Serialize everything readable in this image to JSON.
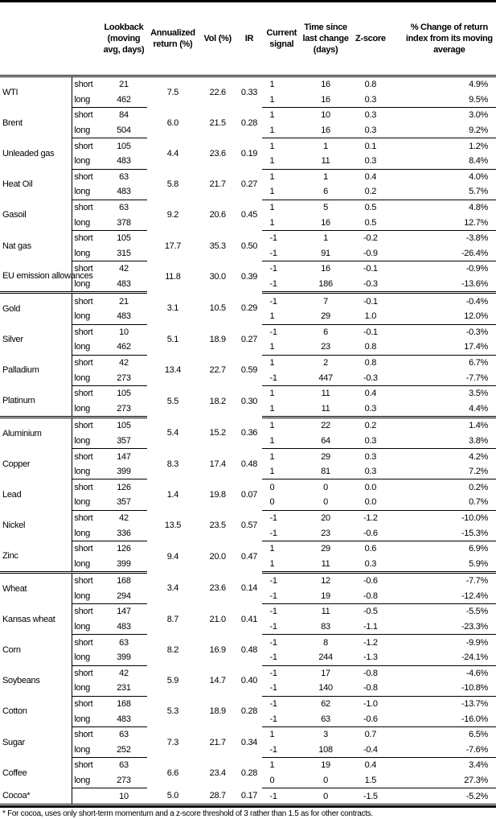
{
  "headers": [
    "",
    "",
    "Lookback (moving avg, days)",
    "Annualized return (%)",
    "Vol (%)",
    "IR",
    "Current signal",
    "Time since last change (days)",
    "Z-score",
    "% Change of return index from its moving average"
  ],
  "sections": [
    [
      {
        "name": "WTI",
        "ret": "7.5",
        "vol": "22.6",
        "ir": "0.33",
        "rows": [
          [
            "short",
            "21",
            "1",
            "16",
            "0.8",
            "4.9%"
          ],
          [
            "long",
            "462",
            "1",
            "16",
            "0.3",
            "9.5%"
          ]
        ]
      },
      {
        "name": "Brent",
        "ret": "6.0",
        "vol": "21.5",
        "ir": "0.28",
        "rows": [
          [
            "short",
            "84",
            "1",
            "10",
            "0.3",
            "3.0%"
          ],
          [
            "long",
            "504",
            "1",
            "16",
            "0.3",
            "9.2%"
          ]
        ]
      },
      {
        "name": "Unleaded gas",
        "ret": "4.4",
        "vol": "23.6",
        "ir": "0.19",
        "rows": [
          [
            "short",
            "105",
            "1",
            "1",
            "0.1",
            "1.2%"
          ],
          [
            "long",
            "483",
            "1",
            "11",
            "0.3",
            "8.4%"
          ]
        ]
      },
      {
        "name": "Heat Oil",
        "ret": "5.8",
        "vol": "21.7",
        "ir": "0.27",
        "rows": [
          [
            "short",
            "63",
            "1",
            "1",
            "0.4",
            "4.0%"
          ],
          [
            "long",
            "483",
            "1",
            "6",
            "0.2",
            "5.7%"
          ]
        ]
      },
      {
        "name": "Gasoil",
        "ret": "9.2",
        "vol": "20.6",
        "ir": "0.45",
        "rows": [
          [
            "short",
            "63",
            "1",
            "5",
            "0.5",
            "4.8%"
          ],
          [
            "long",
            "378",
            "1",
            "16",
            "0.5",
            "12.7%"
          ]
        ]
      },
      {
        "name": "Nat gas",
        "ret": "17.7",
        "vol": "35.3",
        "ir": "0.50",
        "rows": [
          [
            "short",
            "105",
            "-1",
            "1",
            "-0.2",
            "-3.8%"
          ],
          [
            "long",
            "315",
            "-1",
            "91",
            "-0.9",
            "-26.4%"
          ]
        ]
      },
      {
        "name": "EU emission allowances",
        "ret": "11.8",
        "vol": "30.0",
        "ir": "0.39",
        "rows": [
          [
            "short",
            "42",
            "-1",
            "16",
            "-0.1",
            "-0.9%"
          ],
          [
            "long",
            "483",
            "-1",
            "186",
            "-0.3",
            "-13.6%"
          ]
        ]
      }
    ],
    [
      {
        "name": "Gold",
        "ret": "3.1",
        "vol": "10.5",
        "ir": "0.29",
        "rows": [
          [
            "short",
            "21",
            "-1",
            "7",
            "-0.1",
            "-0.4%"
          ],
          [
            "long",
            "483",
            "1",
            "29",
            "1.0",
            "12.0%"
          ]
        ]
      },
      {
        "name": "Silver",
        "ret": "5.1",
        "vol": "18.9",
        "ir": "0.27",
        "rows": [
          [
            "short",
            "10",
            "-1",
            "6",
            "-0.1",
            "-0.3%"
          ],
          [
            "long",
            "462",
            "1",
            "23",
            "0.8",
            "17.4%"
          ]
        ]
      },
      {
        "name": "Palladium",
        "ret": "13.4",
        "vol": "22.7",
        "ir": "0.59",
        "rows": [
          [
            "short",
            "42",
            "1",
            "2",
            "0.8",
            "6.7%"
          ],
          [
            "long",
            "273",
            "-1",
            "447",
            "-0.3",
            "-7.7%"
          ]
        ]
      },
      {
        "name": "Platinum",
        "ret": "5.5",
        "vol": "18.2",
        "ir": "0.30",
        "rows": [
          [
            "short",
            "105",
            "1",
            "11",
            "0.4",
            "3.5%"
          ],
          [
            "long",
            "273",
            "1",
            "11",
            "0.3",
            "4.4%"
          ]
        ]
      }
    ],
    [
      {
        "name": "Aluminium",
        "ret": "5.4",
        "vol": "15.2",
        "ir": "0.36",
        "rows": [
          [
            "short",
            "105",
            "1",
            "22",
            "0.2",
            "1.4%"
          ],
          [
            "long",
            "357",
            "1",
            "64",
            "0.3",
            "3.8%"
          ]
        ]
      },
      {
        "name": "Copper",
        "ret": "8.3",
        "vol": "17.4",
        "ir": "0.48",
        "rows": [
          [
            "short",
            "147",
            "1",
            "29",
            "0.3",
            "4.2%"
          ],
          [
            "long",
            "399",
            "1",
            "81",
            "0.3",
            "7.2%"
          ]
        ]
      },
      {
        "name": "Lead",
        "ret": "1.4",
        "vol": "19.8",
        "ir": "0.07",
        "rows": [
          [
            "short",
            "126",
            "0",
            "0",
            "0.0",
            "0.2%"
          ],
          [
            "long",
            "357",
            "0",
            "0",
            "0.0",
            "0.7%"
          ]
        ]
      },
      {
        "name": "Nickel",
        "ret": "13.5",
        "vol": "23.5",
        "ir": "0.57",
        "rows": [
          [
            "short",
            "42",
            "-1",
            "20",
            "-1.2",
            "-10.0%"
          ],
          [
            "long",
            "336",
            "-1",
            "23",
            "-0.6",
            "-15.3%"
          ]
        ]
      },
      {
        "name": "Zinc",
        "ret": "9.4",
        "vol": "20.0",
        "ir": "0.47",
        "rows": [
          [
            "short",
            "126",
            "1",
            "29",
            "0.6",
            "6.9%"
          ],
          [
            "long",
            "399",
            "1",
            "11",
            "0.3",
            "5.9%"
          ]
        ]
      }
    ],
    [
      {
        "name": "Wheat",
        "ret": "3.4",
        "vol": "23.6",
        "ir": "0.14",
        "rows": [
          [
            "short",
            "168",
            "-1",
            "12",
            "-0.6",
            "-7.7%"
          ],
          [
            "long",
            "294",
            "-1",
            "19",
            "-0.8",
            "-12.4%"
          ]
        ]
      },
      {
        "name": "Kansas wheat",
        "ret": "8.7",
        "vol": "21.0",
        "ir": "0.41",
        "rows": [
          [
            "short",
            "147",
            "-1",
            "11",
            "-0.5",
            "-5.5%"
          ],
          [
            "long",
            "483",
            "-1",
            "83",
            "-1.1",
            "-23.3%"
          ]
        ]
      },
      {
        "name": "Corn",
        "ret": "8.2",
        "vol": "16.9",
        "ir": "0.48",
        "rows": [
          [
            "short",
            "63",
            "-1",
            "8",
            "-1.2",
            "-9.9%"
          ],
          [
            "long",
            "399",
            "-1",
            "244",
            "-1.3",
            "-24.1%"
          ]
        ]
      },
      {
        "name": "Soybeans",
        "ret": "5.9",
        "vol": "14.7",
        "ir": "0.40",
        "rows": [
          [
            "short",
            "42",
            "-1",
            "17",
            "-0.8",
            "-4.6%"
          ],
          [
            "long",
            "231",
            "-1",
            "140",
            "-0.8",
            "-10.8%"
          ]
        ]
      },
      {
        "name": "Cotton",
        "ret": "5.3",
        "vol": "18.9",
        "ir": "0.28",
        "rows": [
          [
            "short",
            "168",
            "-1",
            "62",
            "-1.0",
            "-13.7%"
          ],
          [
            "long",
            "483",
            "-1",
            "63",
            "-0.6",
            "-16.0%"
          ]
        ]
      },
      {
        "name": "Sugar",
        "ret": "7.3",
        "vol": "21.7",
        "ir": "0.34",
        "rows": [
          [
            "short",
            "63",
            "1",
            "3",
            "0.7",
            "6.5%"
          ],
          [
            "long",
            "252",
            "-1",
            "108",
            "-0.4",
            "-7.6%"
          ]
        ]
      },
      {
        "name": "Coffee",
        "ret": "6.6",
        "vol": "23.4",
        "ir": "0.28",
        "rows": [
          [
            "short",
            "63",
            "1",
            "19",
            "0.4",
            "3.4%"
          ],
          [
            "long",
            "273",
            "0",
            "0",
            "1.5",
            "27.3%"
          ]
        ]
      },
      {
        "name": "Cocoa*",
        "ret": "5.0",
        "vol": "28.7",
        "ir": "0.17",
        "rows": [
          [
            "",
            "10",
            "-1",
            "0",
            "-1.5",
            "-5.2%"
          ]
        ]
      }
    ]
  ],
  "footnote": "* For cocoa, uses only short-term momentum and a z-score threshold of 3 rather than 1.5 as for other contracts."
}
